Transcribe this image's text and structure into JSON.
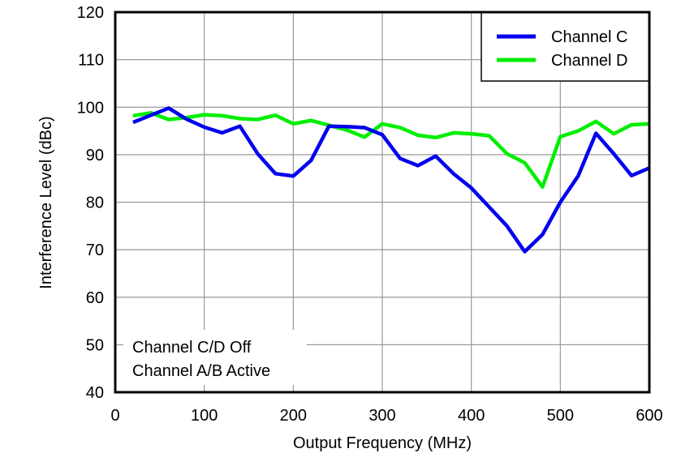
{
  "chart_data": {
    "type": "line",
    "title": "",
    "xlabel": "Output Frequency (MHz)",
    "ylabel": "Interference Level (dBc)",
    "xlim": [
      0,
      600
    ],
    "ylim": [
      40,
      120
    ],
    "xticks": [
      0,
      100,
      200,
      300,
      400,
      500,
      600
    ],
    "yticks": [
      40,
      50,
      60,
      70,
      80,
      90,
      100,
      110,
      120
    ],
    "grid": true,
    "legend_position": "top-right",
    "x": [
      20,
      40,
      60,
      80,
      100,
      120,
      140,
      160,
      180,
      200,
      220,
      240,
      260,
      280,
      300,
      320,
      340,
      360,
      380,
      400,
      420,
      440,
      460,
      480,
      500,
      520,
      540,
      560,
      580,
      600
    ],
    "series": [
      {
        "name": "Channel C",
        "color": "#0000ee",
        "values": [
          96.8,
          98.3,
          99.8,
          97.5,
          95.8,
          94.6,
          96.0,
          90.2,
          86.0,
          85.5,
          88.8,
          96.0,
          95.9,
          95.7,
          94.2,
          89.2,
          87.7,
          89.7,
          86.0,
          83.0,
          79.0,
          75.0,
          69.6,
          73.2,
          80.0,
          85.5,
          94.5,
          90.2,
          85.6,
          87.2
        ]
      },
      {
        "name": "Channel D",
        "color": "#00ee00",
        "values": [
          98.2,
          98.8,
          97.4,
          97.8,
          98.4,
          98.2,
          97.6,
          97.4,
          98.3,
          96.5,
          97.2,
          96.2,
          95.2,
          93.7,
          96.5,
          95.7,
          94.1,
          93.6,
          94.6,
          94.4,
          94.0,
          90.2,
          88.3,
          83.2,
          93.8,
          95.0,
          97.0,
          94.4,
          96.3,
          96.5
        ]
      }
    ],
    "annotations": [
      "Channel C/D Off",
      "Channel A/B Active"
    ]
  }
}
